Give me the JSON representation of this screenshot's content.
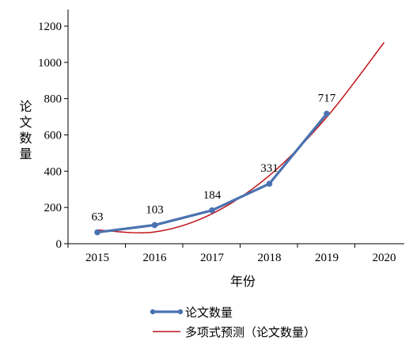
{
  "chart_data": {
    "type": "line",
    "xlabel": "年份",
    "ylabel": "论文数量",
    "categories": [
      "2015",
      "2016",
      "2017",
      "2018",
      "2019",
      "2020"
    ],
    "yticks": [
      0,
      200,
      400,
      600,
      800,
      1000,
      1200
    ],
    "ylim": [
      0,
      1200
    ],
    "series": [
      {
        "name": "论文数量",
        "color": "#4a72b0",
        "x": [
          "2015",
          "2016",
          "2017",
          "2018",
          "2019"
        ],
        "values": [
          63,
          103,
          184,
          331,
          717
        ],
        "data_labels": [
          "63",
          "103",
          "184",
          "331",
          "717"
        ]
      },
      {
        "name": "多项式预测（论文数量）",
        "color": "#c0141b",
        "kind": "trendline",
        "x": [
          "2015",
          "2016",
          "2017",
          "2018",
          "2019",
          "2020"
        ],
        "values": [
          76,
          65,
          165,
          376,
          698,
          1110
        ]
      }
    ],
    "legend": "bottom",
    "grid": false
  }
}
